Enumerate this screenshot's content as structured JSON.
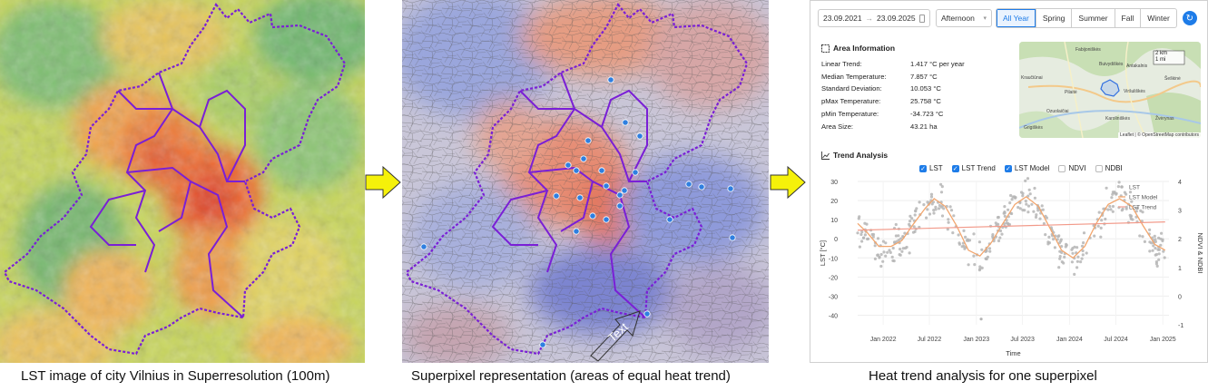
{
  "captions": {
    "left": "LST image of city Vilnius in Superresolution (100m)",
    "middle": "Superpixel representation (areas of equal heat trend)",
    "right": "Heat trend analysis for one superpixel"
  },
  "colors": {
    "arrow": "#f5f10a",
    "boundary": "#7a1fd6",
    "accent": "#1e7ce8",
    "lst_points": "#b5b5b5",
    "model_line": "#f2a66e"
  },
  "overlay_label": "Text",
  "toolbar": {
    "date_from": "23.09.2021",
    "date_to": "23.09.2025",
    "time_of_day": "Afternoon",
    "seasons": [
      "All Year",
      "Spring",
      "Summer",
      "Fall",
      "Winter"
    ],
    "active_season": "All Year"
  },
  "area_info": {
    "title": "Area Information",
    "rows": [
      {
        "label": "Linear Trend:",
        "value": "1.417 °C per year"
      },
      {
        "label": "Median Temperature:",
        "value": "7.857 °C"
      },
      {
        "label": "Standard Deviation:",
        "value": "10.053 °C"
      },
      {
        "label": "pMax Temperature:",
        "value": "25.758 °C"
      },
      {
        "label": "pMin Temperature:",
        "value": "-34.723 °C"
      },
      {
        "label": "Area Size:",
        "value": "43.21 ha"
      }
    ]
  },
  "map": {
    "scale_km": "2 km",
    "scale_mi": "1 mi",
    "attribution": "Leaflet | © OpenStreetMap contributors",
    "places": [
      "Fabijoniškės",
      "Buivydiškės",
      "Antakalnis",
      "Kraučiūnai",
      "Šeškinė",
      "Pilaitė",
      "Viršuliškės",
      "Ozuolaičiai",
      "Karoliniškės",
      "Grigiškės",
      "Žvėrynas"
    ]
  },
  "trend": {
    "title": "Trend Analysis",
    "toggles": [
      {
        "label": "LST",
        "checked": true
      },
      {
        "label": "LST Trend",
        "checked": true
      },
      {
        "label": "LST Model",
        "checked": true
      },
      {
        "label": "NDVI",
        "checked": false
      },
      {
        "label": "NDBI",
        "checked": false
      }
    ]
  },
  "chart_data": {
    "type": "line",
    "xlabel": "Time",
    "ylabel": "LST [°C]",
    "y2label": "NDVI & NDBI",
    "ylim": [
      -45,
      30
    ],
    "y2lim": [
      -1,
      4
    ],
    "yticks": [
      30,
      20,
      10,
      0,
      -10,
      -20,
      -30,
      -40
    ],
    "y2ticks": [
      4,
      3,
      2,
      1,
      0,
      -1
    ],
    "xlim": [
      "2021-09-23",
      "2025-01-25"
    ],
    "xticks": [
      "Jan 2022",
      "Jul 2022",
      "Jan 2023",
      "Jul 2023",
      "Jan 2024",
      "Jul 2024",
      "Jan 2025"
    ],
    "xtick_dates": [
      "2022-01-01",
      "2022-07-01",
      "2023-01-01",
      "2023-07-01",
      "2024-01-01",
      "2024-07-01",
      "2025-01-01"
    ],
    "legend": [
      "LST",
      "LST Model",
      "LST Trend"
    ],
    "legend_position": "top-right",
    "series": [
      {
        "name": "LST Model",
        "x": [
          "2021-09-23",
          "2021-11-01",
          "2021-12-15",
          "2022-02-01",
          "2022-03-15",
          "2022-05-01",
          "2022-06-15",
          "2022-07-20",
          "2022-09-01",
          "2022-10-15",
          "2022-12-01",
          "2023-01-15",
          "2023-03-01",
          "2023-04-15",
          "2023-06-01",
          "2023-07-15",
          "2023-09-01",
          "2023-10-15",
          "2023-12-01",
          "2024-01-15",
          "2024-03-01",
          "2024-04-15",
          "2024-06-01",
          "2024-07-15",
          "2024-09-01",
          "2024-10-15",
          "2024-12-01",
          "2025-01-10"
        ],
        "y": [
          8,
          3,
          -4,
          -4,
          -1,
          8,
          16,
          21,
          17,
          7,
          -6,
          -9,
          -2,
          8,
          18,
          22,
          17,
          6,
          -6,
          -10,
          -4,
          8,
          18,
          21,
          17,
          7,
          -3,
          -6
        ]
      },
      {
        "name": "LST Trend",
        "x": [
          "2021-09-23",
          "2025-01-10"
        ],
        "y": [
          4.5,
          8.8
        ]
      }
    ]
  }
}
